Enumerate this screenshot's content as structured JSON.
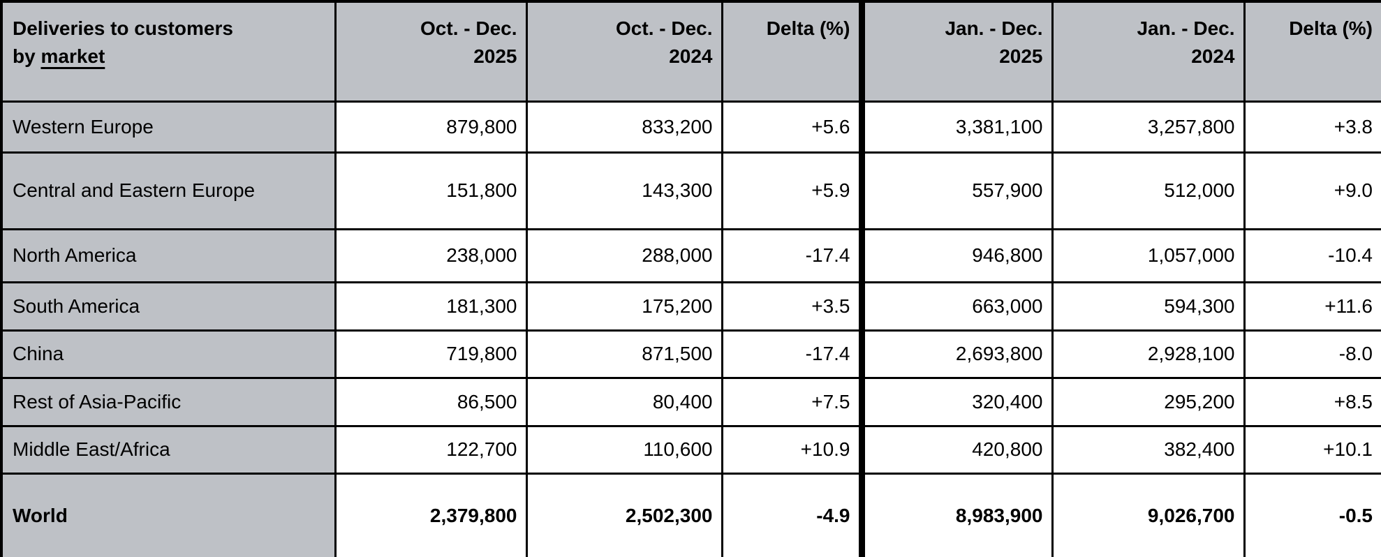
{
  "colors": {
    "header_bg": "#bec1c6",
    "market_col_bg": "#bec1c6",
    "cell_bg": "#ffffff",
    "border": "#000000",
    "text": "#000000"
  },
  "chart_data": {
    "type": "table",
    "title": "Deliveries to customers by market",
    "corner_header": {
      "line1": "Deliveries to customers",
      "line2_prefix": "by ",
      "line2_underlined": "market"
    },
    "columns": [
      {
        "line1": "Oct. - Dec.",
        "line2": "2025"
      },
      {
        "line1": "Oct. - Dec.",
        "line2": "2024"
      },
      {
        "line1": "Delta (%)",
        "line2": ""
      },
      {
        "line1": "Jan. - Dec.",
        "line2": "2025"
      },
      {
        "line1": "Jan. - Dec.",
        "line2": "2024"
      },
      {
        "line1": "Delta (%)",
        "line2": ""
      }
    ],
    "rows": [
      {
        "market": "Western Europe",
        "values": [
          "879,800",
          "833,200",
          "+5.6",
          "3,381,100",
          "3,257,800",
          "+3.8"
        ],
        "bold": false
      },
      {
        "market": "Central and Eastern Europe",
        "values": [
          "151,800",
          "143,300",
          "+5.9",
          "557,900",
          "512,000",
          "+9.0"
        ],
        "bold": false
      },
      {
        "market": "North America",
        "values": [
          "238,000",
          "288,000",
          "-17.4",
          "946,800",
          "1,057,000",
          "-10.4"
        ],
        "bold": false
      },
      {
        "market": "South America",
        "values": [
          "181,300",
          "175,200",
          "+3.5",
          "663,000",
          "594,300",
          "+11.6"
        ],
        "bold": false
      },
      {
        "market": "China",
        "values": [
          "719,800",
          "871,500",
          "-17.4",
          "2,693,800",
          "2,928,100",
          "-8.0"
        ],
        "bold": false
      },
      {
        "market": "Rest of Asia-Pacific",
        "values": [
          "86,500",
          "80,400",
          "+7.5",
          "320,400",
          "295,200",
          "+8.5"
        ],
        "bold": false
      },
      {
        "market": "Middle East/Africa",
        "values": [
          "122,700",
          "110,600",
          "+10.9",
          "420,800",
          "382,400",
          "+10.1"
        ],
        "bold": false
      },
      {
        "market": "World",
        "values": [
          "2,379,800",
          "2,502,300",
          "-4.9",
          "8,983,900",
          "9,026,700",
          "-0.5"
        ],
        "bold": true
      }
    ]
  }
}
